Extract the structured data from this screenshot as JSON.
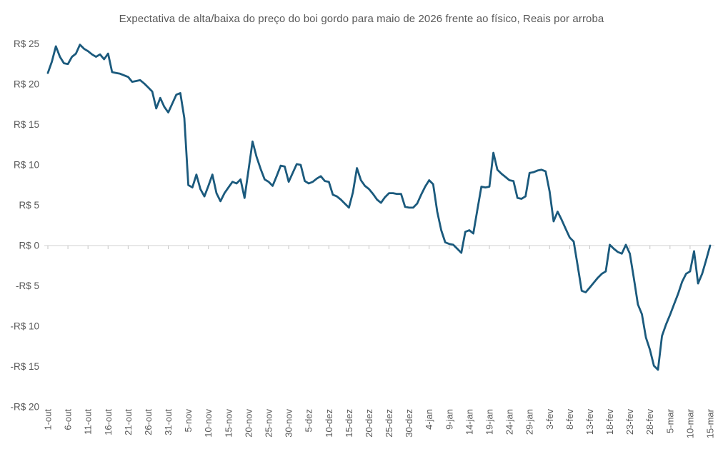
{
  "chart_data": {
    "type": "line",
    "title": "Expectativa de alta/baixa do preço do boi gordo para maio de 2026 frente ao físico, Reais por arroba",
    "legend": "none",
    "grid": "zero-line-only",
    "ylim": [
      -20,
      25
    ],
    "y_ticks": [
      25,
      20,
      15,
      10,
      5,
      0,
      -5,
      -10,
      -15,
      -20
    ],
    "y_tick_labels": [
      "R$ 25",
      "R$ 20",
      "R$ 15",
      "R$ 10",
      "R$ 5",
      "R$ 0",
      "-R$ 5",
      "-R$ 10",
      "-R$ 15",
      "-R$ 20"
    ],
    "x_tick_every": 5,
    "x_tick_labels": [
      "1-out",
      "6-out",
      "11-out",
      "16-out",
      "21-out",
      "26-out",
      "31-out",
      "5-nov",
      "10-nov",
      "15-nov",
      "20-nov",
      "25-nov",
      "30-nov",
      "5-dez",
      "10-dez",
      "15-dez",
      "20-dez",
      "25-dez",
      "30-dez",
      "4-jan",
      "9-jan",
      "14-jan",
      "19-jan",
      "24-jan",
      "29-jan",
      "3-fev",
      "8-fev",
      "13-fev",
      "18-fev",
      "23-fev",
      "28-fev",
      "5-mar",
      "10-mar",
      "15-mar"
    ],
    "x": [
      "1-out",
      "2-out",
      "3-out",
      "4-out",
      "5-out",
      "6-out",
      "7-out",
      "8-out",
      "9-out",
      "10-out",
      "11-out",
      "12-out",
      "13-out",
      "14-out",
      "15-out",
      "16-out",
      "17-out",
      "18-out",
      "19-out",
      "20-out",
      "21-out",
      "22-out",
      "23-out",
      "24-out",
      "25-out",
      "26-out",
      "27-out",
      "28-out",
      "29-out",
      "30-out",
      "31-out",
      "1-nov",
      "2-nov",
      "3-nov",
      "4-nov",
      "5-nov",
      "6-nov",
      "7-nov",
      "8-nov",
      "9-nov",
      "10-nov",
      "11-nov",
      "12-nov",
      "13-nov",
      "14-nov",
      "15-nov",
      "16-nov",
      "17-nov",
      "18-nov",
      "19-nov",
      "20-nov",
      "21-nov",
      "22-nov",
      "23-nov",
      "24-nov",
      "25-nov",
      "26-nov",
      "27-nov",
      "28-nov",
      "29-nov",
      "30-nov",
      "1-dez",
      "2-dez",
      "3-dez",
      "4-dez",
      "5-dez",
      "6-dez",
      "7-dez",
      "8-dez",
      "9-dez",
      "10-dez",
      "11-dez",
      "12-dez",
      "13-dez",
      "14-dez",
      "15-dez",
      "16-dez",
      "17-dez",
      "18-dez",
      "19-dez",
      "20-dez",
      "21-dez",
      "22-dez",
      "23-dez",
      "24-dez",
      "25-dez",
      "26-dez",
      "27-dez",
      "28-dez",
      "29-dez",
      "30-dez",
      "31-dez",
      "1-jan",
      "2-jan",
      "3-jan",
      "4-jan",
      "5-jan",
      "6-jan",
      "7-jan",
      "8-jan",
      "9-jan",
      "10-jan",
      "11-jan",
      "12-jan",
      "13-jan",
      "14-jan",
      "15-jan",
      "16-jan",
      "17-jan",
      "18-jan",
      "19-jan",
      "20-jan",
      "21-jan",
      "22-jan",
      "23-jan",
      "24-jan",
      "25-jan",
      "26-jan",
      "27-jan",
      "28-jan",
      "29-jan",
      "30-jan",
      "31-jan",
      "1-fev",
      "2-fev",
      "3-fev",
      "4-fev",
      "5-fev",
      "6-fev",
      "7-fev",
      "8-fev",
      "9-fev",
      "10-fev",
      "11-fev",
      "12-fev",
      "13-fev",
      "14-fev",
      "15-fev",
      "16-fev",
      "17-fev",
      "18-fev",
      "19-fev",
      "20-fev",
      "21-fev",
      "22-fev",
      "23-fev",
      "24-fev",
      "25-fev",
      "26-fev",
      "27-fev",
      "28-fev",
      "1-mar",
      "2-mar",
      "3-mar",
      "4-mar",
      "5-mar",
      "6-mar",
      "7-mar",
      "8-mar",
      "9-mar",
      "10-mar",
      "11-mar",
      "12-mar",
      "13-mar",
      "14-mar",
      "15-mar"
    ],
    "values": [
      21.4,
      22.8,
      24.7,
      23.4,
      22.6,
      22.5,
      23.4,
      23.8,
      24.9,
      24.4,
      24.1,
      23.7,
      23.4,
      23.7,
      23.1,
      23.8,
      21.5,
      21.4,
      21.3,
      21.1,
      20.9,
      20.3,
      20.4,
      20.5,
      20.1,
      19.6,
      19.1,
      17.0,
      18.3,
      17.2,
      16.5,
      17.6,
      18.7,
      18.9,
      15.8,
      7.5,
      7.2,
      8.8,
      7.0,
      6.1,
      7.4,
      8.8,
      6.5,
      5.5,
      6.5,
      7.2,
      7.9,
      7.7,
      8.2,
      5.9,
      9.4,
      12.9,
      11.0,
      9.5,
      8.2,
      7.9,
      7.4,
      8.6,
      9.9,
      9.8,
      7.9,
      9.0,
      10.1,
      10.0,
      8.0,
      7.7,
      7.9,
      8.3,
      8.6,
      8.0,
      7.9,
      6.3,
      6.1,
      5.7,
      5.2,
      4.7,
      6.6,
      9.6,
      8.1,
      7.4,
      7.0,
      6.4,
      5.7,
      5.3,
      6.0,
      6.5,
      6.5,
      6.4,
      6.4,
      4.8,
      4.7,
      4.7,
      5.2,
      6.3,
      7.3,
      8.1,
      7.6,
      4.2,
      1.9,
      0.4,
      0.2,
      0.1,
      -0.4,
      -0.9,
      1.7,
      1.9,
      1.5,
      4.4,
      7.3,
      7.2,
      7.3,
      11.5,
      9.4,
      8.9,
      8.5,
      8.1,
      8.0,
      5.9,
      5.8,
      6.1,
      9.0,
      9.1,
      9.3,
      9.4,
      9.2,
      6.7,
      3.0,
      4.2,
      3.2,
      2.1,
      1.0,
      0.5,
      -2.5,
      -5.6,
      -5.8,
      -5.2,
      -4.6,
      -4.0,
      -3.5,
      -3.2,
      0.1,
      -0.4,
      -0.8,
      -1.0,
      0.1,
      -1.0,
      -4.1,
      -7.3,
      -8.5,
      -11.4,
      -12.9,
      -14.9,
      -15.4,
      -11.2,
      -9.8,
      -8.6,
      -7.3,
      -6.0,
      -4.5,
      -3.5,
      -3.2,
      -0.7,
      -4.7,
      -3.5,
      -1.8,
      0.0
    ],
    "colors": {
      "line": "#1b5a7d",
      "axis_text": "#595959",
      "zero_gridline": "#d9d9d9",
      "tick_mark": "#c6c6c6",
      "background": "#ffffff"
    }
  }
}
